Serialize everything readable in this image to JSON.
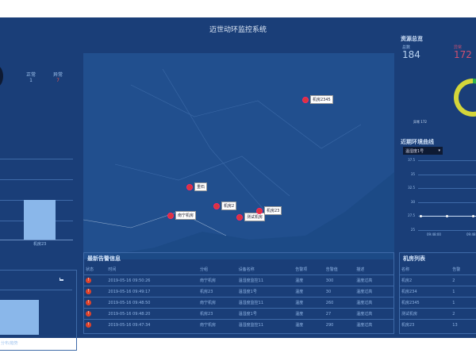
{
  "header": {
    "title": "迈世动环监控系统"
  },
  "left": {
    "normal_label": "正常",
    "normal_value": "1",
    "abnormal_label": "异常",
    "abnormal_value": "7",
    "bar_label": "机房23",
    "bottom_label": "分布/趋势"
  },
  "map": {
    "markers": [
      {
        "label": "机房2345"
      },
      {
        "label": "重石"
      },
      {
        "label": "南宁机房"
      },
      {
        "label": "机房2"
      },
      {
        "label": "测试机房"
      },
      {
        "label": "机房23"
      }
    ]
  },
  "resources": {
    "title": "资源总览",
    "total_label": "总数",
    "total_value": "184",
    "abnormal_label": "异常",
    "abnormal_value": "172",
    "donut_label": "异常 172",
    "colors": {
      "abnormal": "#d4d63a",
      "normal": "#35b24a"
    },
    "abnormal_share": 0.935
  },
  "env": {
    "title": "近期环境曲线",
    "select_value": "温湿度1号",
    "y_ticks": [
      "37.5",
      "35",
      "32.5",
      "30",
      "27.5",
      "25"
    ],
    "x_ticks": [
      "09:48:00",
      "09:48"
    ],
    "series_values": [
      27.5,
      27.5,
      27.5
    ]
  },
  "alerts": {
    "title": "最新告警信息",
    "columns": [
      "状态",
      "时间",
      "分组",
      "设备名称",
      "告警项",
      "告警值",
      "描述"
    ],
    "rows": [
      [
        "2019-05-16 09:50:26",
        "南宁机房",
        "温湿度监控11",
        "温度",
        "300",
        "温度过高"
      ],
      [
        "2019-05-16 09:49:17",
        "机房23",
        "温湿度1号",
        "温度",
        "30",
        "温度过高"
      ],
      [
        "2019-05-16 09:48:50",
        "南宁机房",
        "温湿度监控11",
        "温度",
        "260",
        "温度过高"
      ],
      [
        "2019-05-16 09:48:20",
        "机房23",
        "温湿度1号",
        "温度",
        "27",
        "温度过高"
      ],
      [
        "2019-05-16 09:47:34",
        "南宁机房",
        "温湿度监控11",
        "温度",
        "290",
        "温度过高"
      ]
    ]
  },
  "rooms": {
    "title": "机房列表",
    "columns": [
      "名称",
      "告警"
    ],
    "rows": [
      [
        "机房2",
        "2"
      ],
      [
        "机房234",
        "1"
      ],
      [
        "机房2345",
        "1"
      ],
      [
        "测试机房",
        "2"
      ],
      [
        "机房23",
        "13"
      ]
    ]
  }
}
